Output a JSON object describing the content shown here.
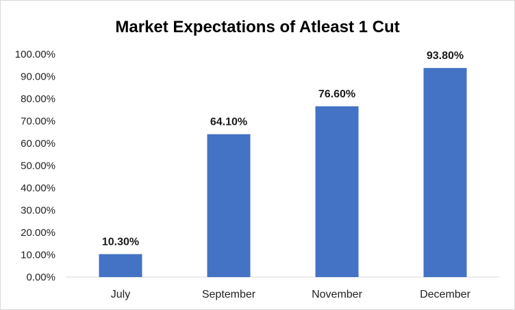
{
  "chart_data": {
    "type": "bar",
    "title": "Market Expectations of Atleast 1 Cut",
    "xlabel": "",
    "ylabel": "",
    "categories": [
      "July",
      "September",
      "November",
      "December"
    ],
    "values": [
      10.3,
      64.1,
      76.6,
      93.8
    ],
    "data_labels": [
      "10.30%",
      "64.10%",
      "76.60%",
      "93.80%"
    ],
    "ylim": [
      0,
      100
    ],
    "y_ticks": [
      0,
      10,
      20,
      30,
      40,
      50,
      60,
      70,
      80,
      90,
      100
    ],
    "y_tick_labels": [
      "0.00%",
      "10.00%",
      "20.00%",
      "30.00%",
      "40.00%",
      "50.00%",
      "60.00%",
      "70.00%",
      "80.00%",
      "90.00%",
      "100.00%"
    ],
    "grid": false,
    "legend": "none",
    "colors": {
      "bar": "#4472c4",
      "axis": "#d9d9d9"
    }
  }
}
